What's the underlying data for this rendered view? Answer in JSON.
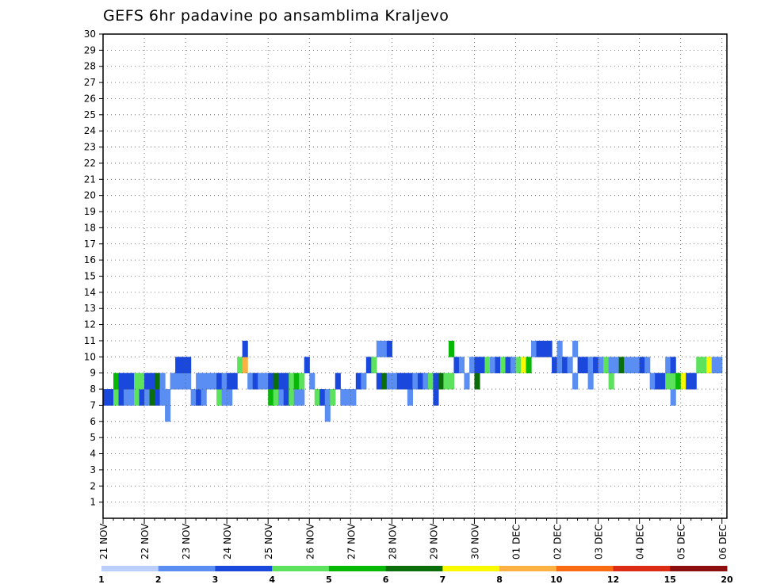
{
  "chart_data": {
    "type": "heatmap",
    "title": "GEFS 6hr padavine po ansamblima Kraljevo",
    "x_labels": [
      "21 NOV",
      "22 NOV",
      "23 NOV",
      "24 NOV",
      "25 NOV",
      "26 NOV",
      "27 NOV",
      "28 NOV",
      "29 NOV",
      "30 NOV",
      "01 DEC",
      "02 DEC",
      "03 DEC",
      "04 DEC",
      "05 DEC",
      "06 DEC"
    ],
    "y_labels": [
      "1",
      "2",
      "3",
      "4",
      "5",
      "6",
      "7",
      "8",
      "9",
      "10",
      "11",
      "12",
      "13",
      "14",
      "15",
      "16",
      "17",
      "18",
      "19",
      "20",
      "21",
      "22",
      "23",
      "24",
      "25",
      "26",
      "27",
      "28",
      "29",
      "30"
    ],
    "steps_per_day": 4,
    "y_range": [
      0,
      30
    ],
    "grid": true,
    "legend": {
      "position": "bottom",
      "labels": [
        "1",
        "2",
        "3",
        "4",
        "5",
        "6",
        "7",
        "8",
        "10",
        "12",
        "15",
        "20"
      ],
      "colors": [
        "#bccffb",
        "#5b8ef2",
        "#1a48dd",
        "#5ce25c",
        "#07b807",
        "#0a6e0a",
        "#f9f900",
        "#fcb243",
        "#f96b13",
        "#dc2c13",
        "#8d0e0e"
      ]
    },
    "cells": [
      [
        7,
        0,
        2
      ],
      [
        7,
        1,
        2
      ],
      [
        7,
        2,
        3
      ],
      [
        8,
        2,
        4
      ],
      [
        7,
        3,
        2
      ],
      [
        8,
        3,
        2
      ],
      [
        7,
        4,
        1
      ],
      [
        8,
        4,
        2
      ],
      [
        7,
        5,
        1
      ],
      [
        8,
        5,
        2
      ],
      [
        7,
        6,
        3
      ],
      [
        8,
        6,
        3
      ],
      [
        7,
        7,
        2
      ],
      [
        8,
        7,
        3
      ],
      [
        7,
        8,
        1
      ],
      [
        8,
        8,
        2
      ],
      [
        7,
        9,
        5
      ],
      [
        8,
        9,
        2
      ],
      [
        7,
        10,
        2
      ],
      [
        8,
        10,
        5
      ],
      [
        7,
        11,
        1
      ],
      [
        8,
        11,
        1
      ],
      [
        6,
        12,
        1
      ],
      [
        7,
        12,
        1
      ],
      [
        8,
        13,
        1
      ],
      [
        8,
        14,
        1
      ],
      [
        9,
        14,
        2
      ],
      [
        8,
        15,
        1
      ],
      [
        9,
        15,
        2
      ],
      [
        8,
        16,
        1
      ],
      [
        9,
        16,
        2
      ],
      [
        7,
        17,
        1
      ],
      [
        7,
        18,
        2
      ],
      [
        8,
        18,
        1
      ],
      [
        7,
        19,
        1
      ],
      [
        8,
        19,
        1
      ],
      [
        8,
        20,
        1
      ],
      [
        8,
        21,
        1
      ],
      [
        7,
        22,
        3
      ],
      [
        8,
        22,
        2
      ],
      [
        7,
        23,
        1
      ],
      [
        8,
        23,
        1
      ],
      [
        7,
        24,
        1
      ],
      [
        8,
        24,
        2
      ],
      [
        8,
        25,
        2
      ],
      [
        9,
        26,
        3
      ],
      [
        9,
        27,
        7
      ],
      [
        10,
        27,
        2
      ],
      [
        8,
        28,
        1
      ],
      [
        8,
        29,
        2
      ],
      [
        8,
        30,
        1
      ],
      [
        8,
        31,
        1
      ],
      [
        7,
        32,
        4
      ],
      [
        8,
        32,
        2
      ],
      [
        7,
        33,
        3
      ],
      [
        8,
        33,
        5
      ],
      [
        7,
        34,
        1
      ],
      [
        8,
        34,
        2
      ],
      [
        7,
        35,
        2
      ],
      [
        8,
        35,
        2
      ],
      [
        7,
        36,
        3
      ],
      [
        8,
        36,
        3
      ],
      [
        7,
        37,
        1
      ],
      [
        8,
        37,
        4
      ],
      [
        7,
        38,
        1
      ],
      [
        8,
        38,
        3
      ],
      [
        9,
        39,
        2
      ],
      [
        8,
        40,
        1
      ],
      [
        7,
        41,
        3
      ],
      [
        7,
        42,
        2
      ],
      [
        6,
        43,
        1
      ],
      [
        7,
        43,
        1
      ],
      [
        7,
        44,
        3
      ],
      [
        8,
        45,
        2
      ],
      [
        7,
        46,
        1
      ],
      [
        7,
        47,
        1
      ],
      [
        7,
        48,
        1
      ],
      [
        8,
        49,
        2
      ],
      [
        8,
        50,
        1
      ],
      [
        9,
        51,
        2
      ],
      [
        9,
        52,
        3
      ],
      [
        8,
        53,
        2
      ],
      [
        10,
        53,
        1
      ],
      [
        8,
        54,
        5
      ],
      [
        10,
        54,
        1
      ],
      [
        8,
        55,
        1
      ],
      [
        10,
        55,
        2
      ],
      [
        8,
        56,
        1
      ],
      [
        8,
        57,
        2
      ],
      [
        8,
        58,
        2
      ],
      [
        7,
        59,
        1
      ],
      [
        8,
        59,
        2
      ],
      [
        8,
        60,
        1
      ],
      [
        8,
        61,
        2
      ],
      [
        8,
        62,
        1
      ],
      [
        8,
        63,
        3
      ],
      [
        7,
        64,
        2
      ],
      [
        8,
        64,
        2
      ],
      [
        8,
        65,
        5
      ],
      [
        8,
        66,
        3
      ],
      [
        8,
        67,
        3
      ],
      [
        10,
        67,
        4
      ],
      [
        9,
        68,
        2
      ],
      [
        9,
        69,
        1
      ],
      [
        8,
        70,
        1
      ],
      [
        9,
        71,
        1
      ],
      [
        8,
        72,
        5
      ],
      [
        9,
        72,
        2
      ],
      [
        9,
        73,
        2
      ],
      [
        9,
        74,
        3
      ],
      [
        9,
        75,
        1
      ],
      [
        9,
        76,
        2
      ],
      [
        9,
        77,
        3
      ],
      [
        9,
        78,
        2
      ],
      [
        9,
        79,
        1
      ],
      [
        9,
        80,
        3
      ],
      [
        9,
        81,
        6
      ],
      [
        9,
        82,
        4
      ],
      [
        10,
        83,
        1
      ],
      [
        10,
        84,
        2
      ],
      [
        10,
        85,
        2
      ],
      [
        10,
        86,
        2
      ],
      [
        9,
        87,
        2
      ],
      [
        9,
        88,
        1
      ],
      [
        10,
        88,
        1
      ],
      [
        9,
        89,
        2
      ],
      [
        9,
        90,
        1
      ],
      [
        8,
        91,
        1
      ],
      [
        10,
        91,
        1
      ],
      [
        9,
        92,
        2
      ],
      [
        9,
        93,
        2
      ],
      [
        8,
        94,
        1
      ],
      [
        9,
        94,
        1
      ],
      [
        9,
        95,
        2
      ],
      [
        9,
        96,
        1
      ],
      [
        9,
        97,
        3
      ],
      [
        8,
        98,
        3
      ],
      [
        9,
        98,
        1
      ],
      [
        9,
        99,
        1
      ],
      [
        9,
        100,
        5
      ],
      [
        9,
        101,
        1
      ],
      [
        9,
        102,
        1
      ],
      [
        9,
        103,
        1
      ],
      [
        9,
        104,
        2
      ],
      [
        9,
        105,
        1
      ],
      [
        8,
        106,
        1
      ],
      [
        8,
        107,
        2
      ],
      [
        8,
        108,
        2
      ],
      [
        8,
        109,
        3
      ],
      [
        9,
        109,
        1
      ],
      [
        7,
        110,
        1
      ],
      [
        8,
        110,
        3
      ],
      [
        9,
        110,
        2
      ],
      [
        8,
        111,
        4
      ],
      [
        8,
        112,
        6
      ],
      [
        8,
        113,
        2
      ],
      [
        8,
        114,
        2
      ],
      [
        9,
        115,
        3
      ],
      [
        9,
        116,
        3
      ],
      [
        9,
        117,
        6
      ],
      [
        9,
        118,
        1
      ],
      [
        9,
        119,
        1
      ]
    ]
  }
}
